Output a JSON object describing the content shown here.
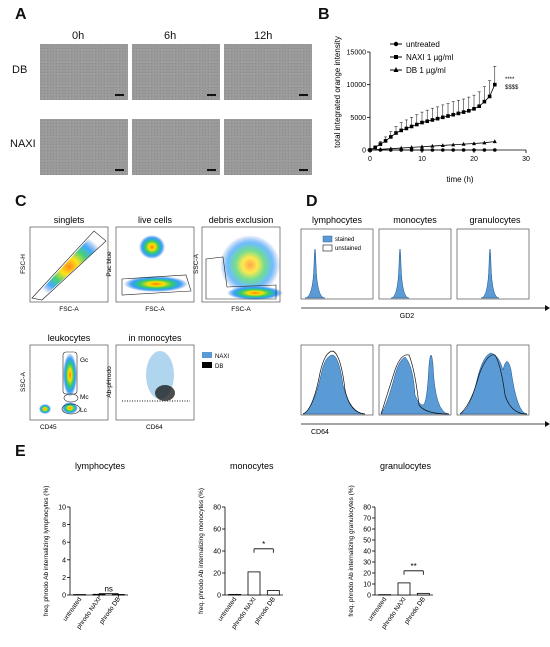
{
  "panels": {
    "A": "A",
    "B": "B",
    "C": "C",
    "D": "D",
    "E": "E"
  },
  "panelA": {
    "cols": [
      "0h",
      "6h",
      "12h"
    ],
    "rows": [
      "DB",
      "NAXI"
    ]
  },
  "chart_data": [
    {
      "type": "line",
      "xlabel": "time (h)",
      "ylabel": "total integrated orange intensity",
      "xlim": [
        0,
        30
      ],
      "ylim": [
        0,
        15000
      ],
      "xticks": [
        "0",
        "10",
        "20",
        "30"
      ],
      "yticks": [
        "0",
        "5000",
        "10000",
        "15000"
      ],
      "legend": [
        "untreated",
        "NAXI 1 µg/ml",
        "DB 1 µg/ml"
      ],
      "annotations": [
        "****",
        "$$$$"
      ],
      "series": [
        {
          "name": "untreated",
          "marker": "circle",
          "x": [
            0,
            2,
            4,
            6,
            8,
            10,
            12,
            14,
            16,
            18,
            20,
            22,
            24
          ],
          "y": [
            0,
            0,
            0,
            0,
            0,
            0,
            0,
            0,
            0,
            0,
            0,
            0,
            0
          ]
        },
        {
          "name": "NAXI 1 µg/ml",
          "marker": "square",
          "x": [
            0,
            1,
            2,
            3,
            4,
            5,
            6,
            7,
            8,
            9,
            10,
            11,
            12,
            13,
            14,
            15,
            16,
            17,
            18,
            19,
            20,
            21,
            22,
            23,
            24
          ],
          "y": [
            0,
            400,
            900,
            1400,
            2000,
            2600,
            3000,
            3300,
            3600,
            3900,
            4200,
            4400,
            4600,
            4800,
            5000,
            5200,
            5400,
            5600,
            5800,
            6000,
            6300,
            6700,
            7400,
            8200,
            10000
          ],
          "err": [
            0,
            200,
            400,
            600,
            800,
            1000,
            1200,
            1300,
            1400,
            1500,
            1600,
            1700,
            1800,
            1800,
            1900,
            1900,
            2000,
            2000,
            2000,
            2100,
            2100,
            2200,
            2300,
            2400,
            2800
          ]
        },
        {
          "name": "DB 1 µg/ml",
          "marker": "triangle",
          "x": [
            0,
            2,
            4,
            6,
            8,
            10,
            12,
            14,
            16,
            18,
            20,
            22,
            24
          ],
          "y": [
            0,
            100,
            200,
            300,
            400,
            500,
            600,
            700,
            800,
            900,
            1000,
            1100,
            1300
          ]
        }
      ]
    },
    {
      "type": "bar",
      "title": "lymphocytes",
      "ylabel": "freq. phrodo Ab internalizing lymphocytes (%)",
      "categories": [
        "untreated",
        "phrodo NAXI",
        "phrodo DB"
      ],
      "values": [
        0.05,
        0.08,
        0.06
      ],
      "ylim": [
        0,
        10
      ],
      "yticks": [
        "0",
        "2",
        "4",
        "6",
        "8",
        "10"
      ],
      "sig": "ns"
    },
    {
      "type": "bar",
      "title": "monocytes",
      "ylabel": "freq. phrodo Ab internalizing monocytes (%)",
      "categories": [
        "untreated",
        "phrodo NAXI",
        "phrodo DB"
      ],
      "values": [
        0.5,
        21,
        4
      ],
      "ylim": [
        0,
        80
      ],
      "yticks": [
        "0",
        "20",
        "40",
        "60",
        "80"
      ],
      "sig": "*"
    },
    {
      "type": "bar",
      "title": "granulocytes",
      "ylabel": "freq. phrodo Ab internalizing granulocytes (%)",
      "categories": [
        "untreated",
        "phrodo NAXI",
        "phrodo DB"
      ],
      "values": [
        0.3,
        11,
        1.5
      ],
      "ylim": [
        0,
        80
      ],
      "yticks": [
        "0",
        "10",
        "20",
        "30",
        "40",
        "50",
        "60",
        "70",
        "80"
      ],
      "sig": "**"
    }
  ],
  "panelC": {
    "plots": [
      {
        "title": "singlets",
        "x": "FSC-A",
        "y": "FSC-H"
      },
      {
        "title": "live cells",
        "x": "FSC-A",
        "y": "Pac blue"
      },
      {
        "title": "debris exclusion",
        "x": "FSC-A",
        "y": "SSC-A"
      },
      {
        "title": "leukocytes",
        "x": "CD45",
        "y": "SSC-A"
      },
      {
        "title": "in monocytes",
        "x": "CD64",
        "y": "Ab-pHrodo"
      }
    ],
    "gates": [
      "Gc",
      "Mc",
      "Lc"
    ],
    "legend": [
      "NAXI",
      "DB"
    ]
  },
  "panelD": {
    "titles": [
      "lymphocytes",
      "monocytes",
      "granulocytes"
    ],
    "legend": [
      "stained",
      "unstained"
    ],
    "xlabel_top": "GD2",
    "xlabel_bottom": "CD64"
  },
  "colors": {
    "blue": "#5b9bd5",
    "flowBlue": "#3b6bd0",
    "black": "#000000",
    "grey": "#9a9a9a"
  }
}
